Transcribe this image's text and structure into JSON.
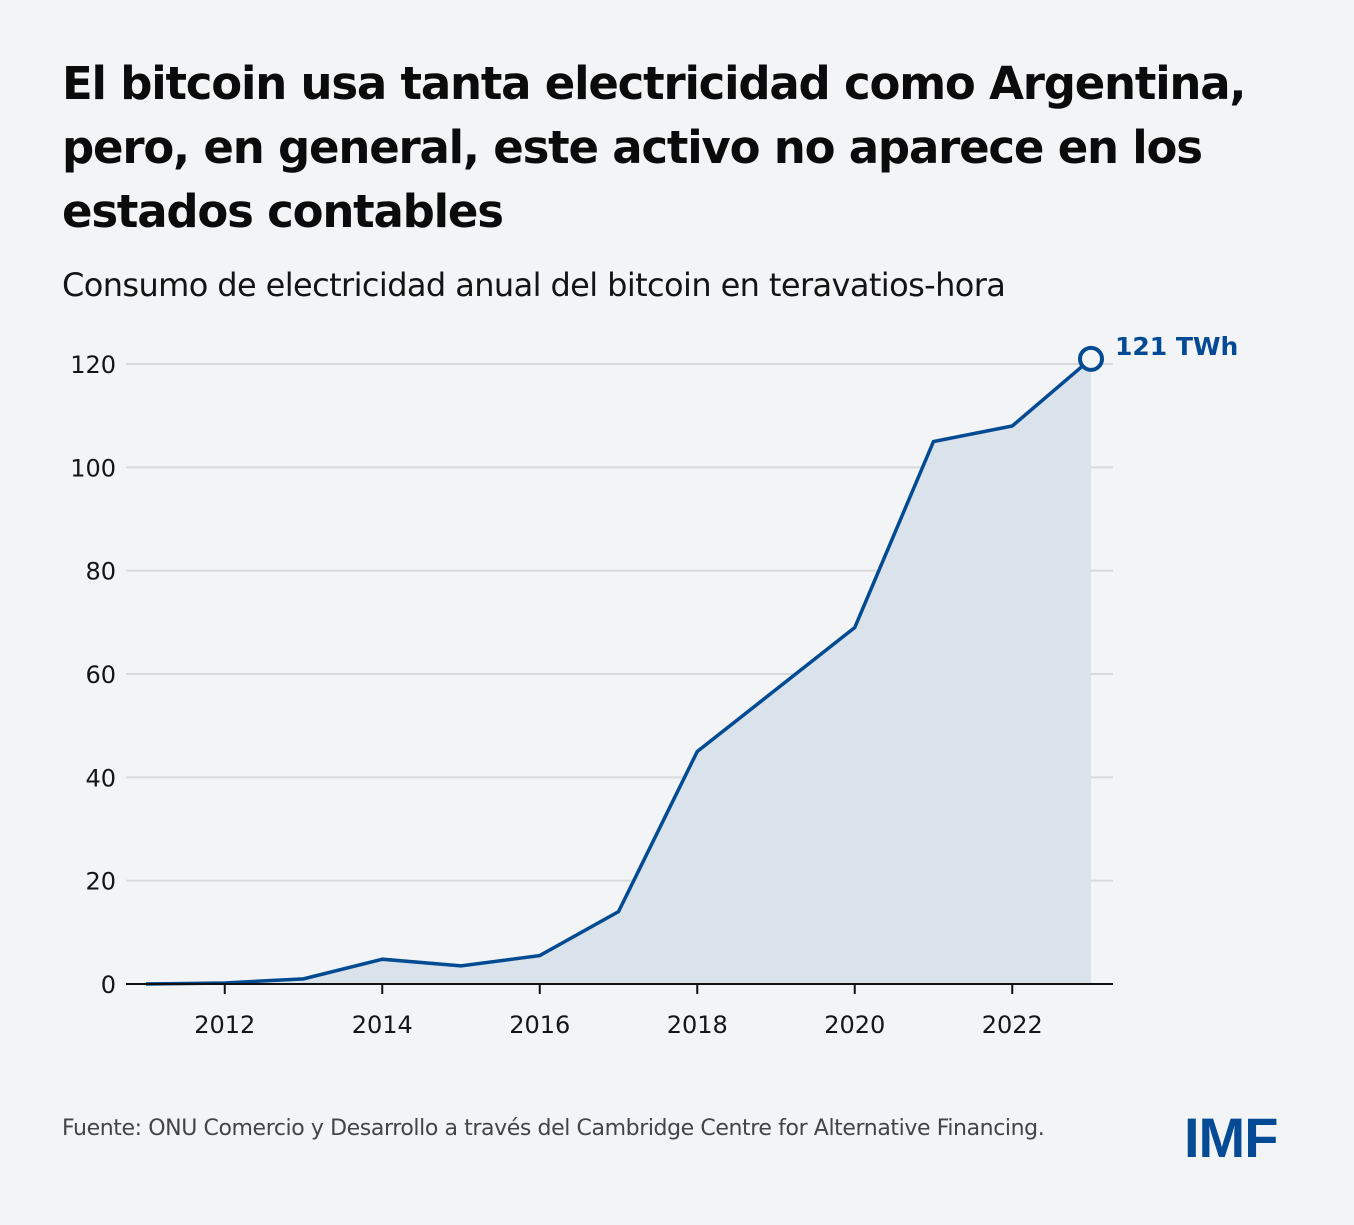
{
  "header": {
    "title": "El bitcoin usa tanta electricidad como Argentina, pero, en general, este activo no aparece en los estados contables",
    "subtitle": "Consumo de electricidad anual del bitcoin en teravatios-hora"
  },
  "footer": {
    "source": "Fuente: ONU Comercio y Desarrollo a través del Cambridge Centre for Alternative Financing.",
    "logo": "IMF"
  },
  "colors": {
    "line": "#024b93",
    "area": "#dae2eb",
    "grid": "#d9d9dc",
    "axis": "#111111",
    "accent": "#044a94"
  },
  "chart_data": {
    "type": "area",
    "title": "Consumo de electricidad anual del bitcoin en teravatios-hora",
    "xlabel": "",
    "ylabel": "",
    "x": [
      2011,
      2012,
      2013,
      2014,
      2015,
      2016,
      2017,
      2018,
      2019,
      2020,
      2021,
      2022,
      2023
    ],
    "series": [
      {
        "name": "Consumo de electricidad (TWh)",
        "values": [
          0,
          0.2,
          1,
          4.8,
          3.5,
          5.5,
          14,
          45,
          57,
          69,
          105,
          108,
          121
        ]
      }
    ],
    "xlim": [
      2010.5,
      2023.3
    ],
    "ylim": [
      0,
      120
    ],
    "xticks": [
      2012,
      2014,
      2016,
      2018,
      2020,
      2022
    ],
    "yticks": [
      0,
      20,
      40,
      60,
      80,
      100,
      120
    ],
    "grid": true,
    "annotation": {
      "x": 2023,
      "y": 121,
      "label": "121 TWh"
    },
    "legend": "none"
  }
}
